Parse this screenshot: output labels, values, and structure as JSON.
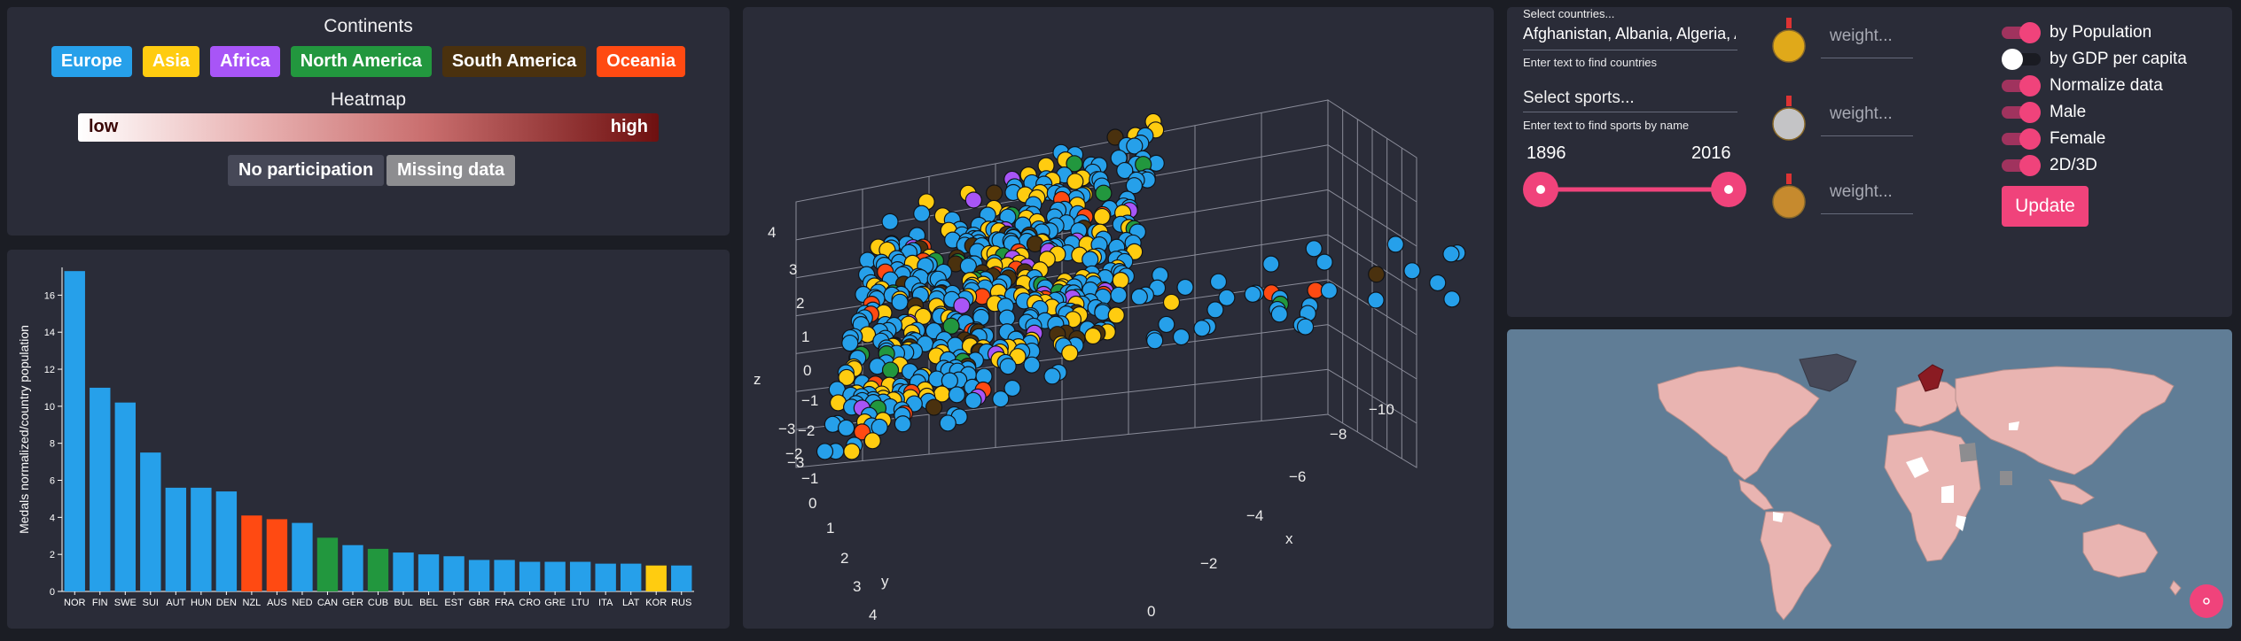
{
  "legend": {
    "title": "Continents",
    "continents": [
      {
        "label": "Europe",
        "color": "#26a0ea",
        "text_color": "#ffffff"
      },
      {
        "label": "Asia",
        "color": "#ffcc10",
        "text_color": "#ffffff"
      },
      {
        "label": "Africa",
        "color": "#a855f7",
        "text_color": "#ffffff"
      },
      {
        "label": "North America",
        "color": "#22973e",
        "text_color": "#ffffff"
      },
      {
        "label": "South America",
        "color": "#4a310e",
        "text_color": "#ffffff"
      },
      {
        "label": "Oceania",
        "color": "#ff4a12",
        "text_color": "#ffffff"
      }
    ],
    "heatmap_title": "Heatmap",
    "heat_low": "low",
    "heat_high": "high",
    "no_participation": "No participation",
    "missing_data": "Missing data",
    "no_participation_color": "#464857",
    "missing_data_color": "#8d8d90"
  },
  "chart_data": [
    {
      "type": "bar",
      "ylabel": "Medals normalized/country population",
      "ylim": [
        0,
        17.5
      ],
      "yticks": [
        0,
        2,
        4,
        6,
        8,
        10,
        12,
        14,
        16
      ],
      "categories": [
        "NOR",
        "FIN",
        "SWE",
        "SUI",
        "AUT",
        "HUN",
        "DEN",
        "NZL",
        "AUS",
        "NED",
        "CAN",
        "GER",
        "CUB",
        "BUL",
        "BEL",
        "EST",
        "GBR",
        "FRA",
        "CRO",
        "GRE",
        "LTU",
        "ITA",
        "LAT",
        "KOR",
        "RUS"
      ],
      "values": [
        17.3,
        11.0,
        10.2,
        7.5,
        5.6,
        5.6,
        5.4,
        4.1,
        3.9,
        3.7,
        2.9,
        2.5,
        2.3,
        2.1,
        2.0,
        1.9,
        1.7,
        1.7,
        1.6,
        1.6,
        1.6,
        1.5,
        1.5,
        1.4,
        1.4
      ],
      "continent": [
        "Europe",
        "Europe",
        "Europe",
        "Europe",
        "Europe",
        "Europe",
        "Europe",
        "Oceania",
        "Oceania",
        "Europe",
        "North America",
        "Europe",
        "North America",
        "Europe",
        "Europe",
        "Europe",
        "Europe",
        "Europe",
        "Europe",
        "Europe",
        "Europe",
        "Europe",
        "Europe",
        "Asia",
        "Europe"
      ]
    },
    {
      "type": "scatter",
      "dimensions": 3,
      "x_label": "x",
      "y_label": "y",
      "z_label": "z",
      "x_ticks": [
        "0",
        "−2",
        "−4",
        "−6",
        "−8",
        "−10"
      ],
      "y_ticks": [
        "4",
        "3",
        "2",
        "1",
        "0",
        "−1",
        "−2",
        "−3"
      ],
      "z_ticks": [
        "4",
        "3",
        "2",
        "1",
        "0",
        "−1",
        "−2",
        "−3"
      ]
    }
  ],
  "controls": {
    "countries_label": "Select countries...",
    "countries_value": "Afghanistan, Albania, Algeria, A",
    "countries_helper": "Enter text to find countries",
    "sports_label": "Select sports...",
    "sports_helper": "Enter text to find sports by name",
    "year_start": "1896",
    "year_end": "2016",
    "medals": [
      {
        "name": "gold",
        "color": "#e0a91a",
        "placeholder": "weight..."
      },
      {
        "name": "silver",
        "color": "#c4c4c6",
        "placeholder": "weight..."
      },
      {
        "name": "bronze",
        "color": "#c68a2e",
        "placeholder": "weight..."
      }
    ],
    "toggles": [
      {
        "label": "by Population",
        "on": true
      },
      {
        "label": "by GDP per capita",
        "on": false
      },
      {
        "label": "Normalize data",
        "on": true
      },
      {
        "label": "Male",
        "on": true
      },
      {
        "label": "Female",
        "on": true
      },
      {
        "label": "2D/3D",
        "on": true
      }
    ],
    "update_label": "Update",
    "accent_color": "#f0437b"
  },
  "map": {
    "ocean_color": "#607d96",
    "land_color": "#e9b4b1"
  }
}
